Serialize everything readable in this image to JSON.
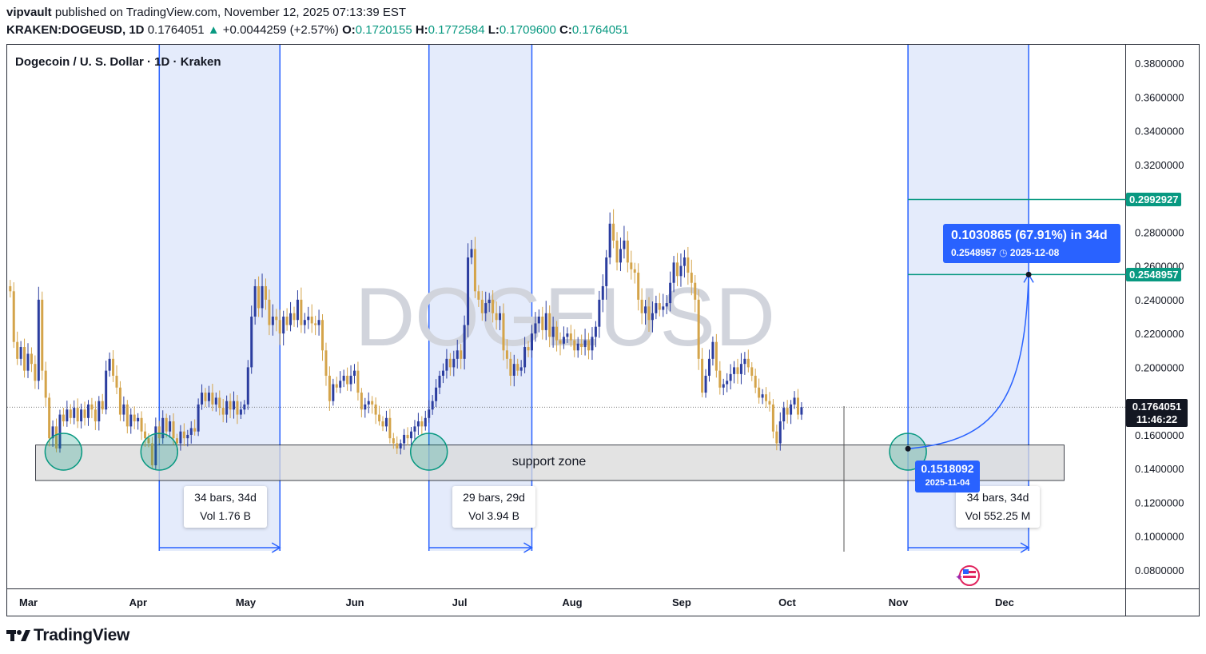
{
  "header": {
    "author": "vipvault",
    "published_on": "published on TradingView.com, November 12, 2025 07:13:39 EST",
    "symbol": "KRAKEN:DOGEUSD, 1D",
    "last": "0.1764051",
    "change": "+0.0044259 (+2.57%)",
    "o_label": "O:",
    "o": "0.1720155",
    "h_label": "H:",
    "h": "0.1772584",
    "l_label": "L:",
    "l": "0.1709600",
    "c_label": "C:",
    "c": "0.1764051"
  },
  "chart_title": "Dogecoin / U. S. Dollar · 1D · Kraken",
  "watermark": "DOGEUSD",
  "footer_brand": "TradingView",
  "colors": {
    "up": "#2b3d9f",
    "down": "#d4a44a",
    "accent": "#2962ff",
    "teal": "#089981",
    "range_fill": "#e4ebfb",
    "zone_fill": "#d9d9d9"
  },
  "annotations": {
    "support_zone": "support zone",
    "range1": {
      "line1": "34 bars, 34d",
      "line2": "Vol 1.76 B"
    },
    "range2": {
      "line1": "29 bars, 29d",
      "line2": "Vol 3.94 B"
    },
    "range3": {
      "line1": "34 bars, 34d",
      "line2": "Vol 552.25 M"
    },
    "low_badge": {
      "price": "0.1518092",
      "date": "2025-11-04"
    },
    "target_badge": {
      "main": "0.1030865 (67.91%) in 34d",
      "price": "0.2548957",
      "date": "2025-12-08"
    },
    "price_labels": {
      "target_high": "0.2992927",
      "target": "0.2548957",
      "last": "0.1764051",
      "countdown": "11:46:22"
    }
  },
  "chart_data": {
    "type": "candlestick",
    "title": "Dogecoin / U. S. Dollar · 1D · Kraken",
    "y_ticks": [
      "0.3800000",
      "0.3600000",
      "0.3400000",
      "0.3200000",
      "0.2800000",
      "0.2600000",
      "0.2400000",
      "0.2200000",
      "0.2000000",
      "0.1600000",
      "0.1400000",
      "0.1200000",
      "0.1000000",
      "0.0800000"
    ],
    "x_ticks": [
      "Mar",
      "Apr",
      "May",
      "Jun",
      "Jul",
      "Aug",
      "Sep",
      "Oct",
      "Nov",
      "Dec"
    ],
    "x_range": [
      "2025-02-25",
      "2025-12-14"
    ],
    "ylim": [
      0.07,
      0.4
    ],
    "support_zone": [
      0.133,
      0.154
    ],
    "date_ranges": [
      {
        "start": "2025-04-07",
        "end": "2025-05-11",
        "bars": 34
      },
      {
        "start": "2025-06-22",
        "end": "2025-07-21",
        "bars": 29
      },
      {
        "start": "2025-11-04",
        "end": "2025-12-08",
        "bars": 34
      }
    ],
    "highlighted_lows": [
      "2025-03-11",
      "2025-04-07",
      "2025-06-22",
      "2025-11-04"
    ],
    "projection": {
      "from_date": "2025-11-04",
      "from": 0.1518092,
      "to_date": "2025-12-08",
      "to": 0.2548957
    },
    "horizontal_levels": [
      0.2992927,
      0.2548957
    ],
    "closes": [
      0.245,
      0.215,
      0.205,
      0.212,
      0.198,
      0.208,
      0.202,
      0.192,
      0.24,
      0.198,
      0.182,
      0.158,
      0.165,
      0.152,
      0.172,
      0.168,
      0.175,
      0.17,
      0.176,
      0.168,
      0.175,
      0.17,
      0.178,
      0.175,
      0.168,
      0.18,
      0.175,
      0.198,
      0.205,
      0.195,
      0.188,
      0.172,
      0.178,
      0.165,
      0.172,
      0.168,
      0.17,
      0.162,
      0.158,
      0.155,
      0.142,
      0.165,
      0.158,
      0.17,
      0.162,
      0.168,
      0.158,
      0.155,
      0.162,
      0.158,
      0.16,
      0.164,
      0.162,
      0.178,
      0.185,
      0.18,
      0.185,
      0.178,
      0.182,
      0.176,
      0.172,
      0.18,
      0.175,
      0.18,
      0.172,
      0.175,
      0.178,
      0.2,
      0.23,
      0.248,
      0.235,
      0.248,
      0.24,
      0.225,
      0.23,
      0.228,
      0.22,
      0.23,
      0.225,
      0.232,
      0.228,
      0.24,
      0.225,
      0.228,
      0.23,
      0.226,
      0.225,
      0.228,
      0.21,
      0.195,
      0.18,
      0.19,
      0.188,
      0.192,
      0.195,
      0.19,
      0.195,
      0.198,
      0.185,
      0.175,
      0.178,
      0.18,
      0.178,
      0.172,
      0.168,
      0.165,
      0.17,
      0.158,
      0.155,
      0.152,
      0.155,
      0.16,
      0.158,
      0.162,
      0.165,
      0.168,
      0.165,
      0.17,
      0.175,
      0.18,
      0.188,
      0.195,
      0.198,
      0.205,
      0.2,
      0.205,
      0.21,
      0.205,
      0.225,
      0.265,
      0.27,
      0.245,
      0.24,
      0.232,
      0.238,
      0.24,
      0.232,
      0.228,
      0.232,
      0.21,
      0.205,
      0.195,
      0.202,
      0.198,
      0.2,
      0.212,
      0.21,
      0.22,
      0.226,
      0.23,
      0.222,
      0.232,
      0.218,
      0.224,
      0.216,
      0.214,
      0.218,
      0.22,
      0.216,
      0.21,
      0.214,
      0.212,
      0.216,
      0.21,
      0.218,
      0.224,
      0.24,
      0.248,
      0.265,
      0.285,
      0.275,
      0.262,
      0.27,
      0.275,
      0.262,
      0.258,
      0.256,
      0.24,
      0.232,
      0.236,
      0.228,
      0.232,
      0.238,
      0.234,
      0.236,
      0.238,
      0.25,
      0.262,
      0.254,
      0.26,
      0.265,
      0.256,
      0.25,
      0.24,
      0.205,
      0.185,
      0.195,
      0.205,
      0.215,
      0.198,
      0.188,
      0.19,
      0.192,
      0.196,
      0.2,
      0.196,
      0.202,
      0.205,
      0.2,
      0.195,
      0.188,
      0.182,
      0.184,
      0.18,
      0.178,
      0.162,
      0.155,
      0.168,
      0.176,
      0.172,
      0.178,
      0.182,
      0.172,
      0.1764051
    ]
  }
}
